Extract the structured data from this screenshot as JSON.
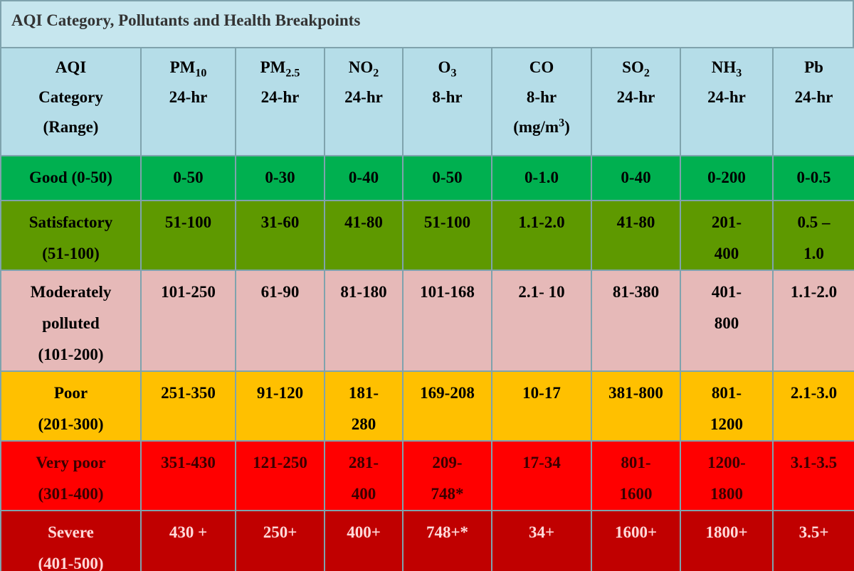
{
  "header": {
    "title": "AQI Category, Pollutants and Health Breakpoints"
  },
  "table": {
    "columns": [
      [
        "AQI",
        "Category",
        "(Range)"
      ],
      [
        {
          "t": "PM",
          "sub": "10"
        },
        "24-hr"
      ],
      [
        {
          "t": "PM",
          "sub": "2.5"
        },
        "24-hr"
      ],
      [
        {
          "t": "NO",
          "sub": "2"
        },
        "24-hr"
      ],
      [
        {
          "t": "O",
          "sub": "3"
        },
        "8-hr"
      ],
      [
        "CO",
        "8-hr",
        {
          "t": "(mg/m",
          "sup": "3",
          "end": ")"
        }
      ],
      [
        {
          "t": "SO",
          "sub": "2"
        },
        "24-hr"
      ],
      [
        {
          "t": "NH",
          "sub": "3"
        },
        "24-hr"
      ],
      [
        "Pb",
        "24-hr"
      ]
    ],
    "rows": [
      [
        [
          "Good (0-50)"
        ],
        [
          "0-50"
        ],
        [
          "0-30"
        ],
        [
          "0-40"
        ],
        [
          "0-50"
        ],
        [
          "0-1.0"
        ],
        [
          "0-40"
        ],
        [
          "0-200"
        ],
        [
          "0-0.5"
        ]
      ],
      [
        [
          "Satisfactory",
          "(51-100)"
        ],
        [
          "51-100"
        ],
        [
          "31-60"
        ],
        [
          "41-80"
        ],
        [
          "51-100"
        ],
        [
          "1.1-2.0"
        ],
        [
          "41-80"
        ],
        [
          "201-",
          "400"
        ],
        [
          "0.5 –",
          "1.0"
        ]
      ],
      [
        [
          "Moderately",
          "polluted",
          "(101-200)"
        ],
        [
          "101-250"
        ],
        [
          "61-90"
        ],
        [
          "81-180"
        ],
        [
          "101-168"
        ],
        [
          "2.1- 10"
        ],
        [
          "81-380"
        ],
        [
          "401-",
          "800"
        ],
        [
          "1.1-2.0"
        ]
      ],
      [
        [
          "Poor",
          "(201-300)"
        ],
        [
          "251-350"
        ],
        [
          "91-120"
        ],
        [
          "181-",
          "280"
        ],
        [
          "169-208"
        ],
        [
          "10-17"
        ],
        [
          "381-800"
        ],
        [
          "801-",
          "1200"
        ],
        [
          "2.1-3.0"
        ]
      ],
      [
        [
          "Very poor",
          "(301-400)"
        ],
        [
          "351-430"
        ],
        [
          "121-250"
        ],
        [
          "281-",
          "400"
        ],
        [
          "209-",
          "748*"
        ],
        [
          "17-34"
        ],
        [
          "801-",
          "1600"
        ],
        [
          "1200-",
          "1800"
        ],
        [
          "3.1-3.5"
        ]
      ],
      [
        [
          "Severe",
          "(401-500)"
        ],
        [
          "430 +"
        ],
        [
          "250+"
        ],
        [
          "400+"
        ],
        [
          "748+*"
        ],
        [
          "34+"
        ],
        [
          "1600+"
        ],
        [
          "1800+"
        ],
        [
          "3.5+"
        ]
      ]
    ]
  }
}
